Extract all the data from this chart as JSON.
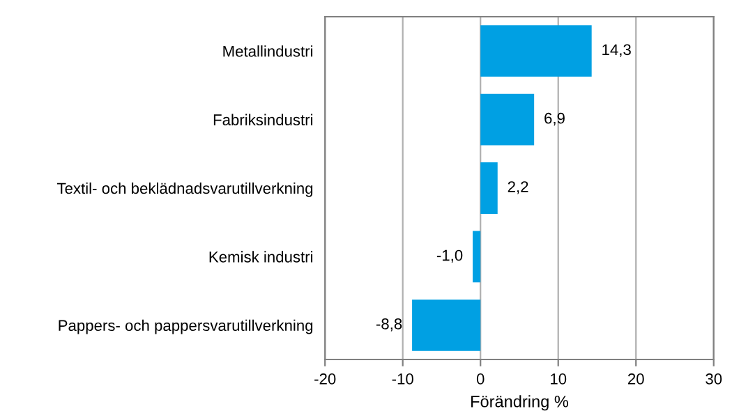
{
  "chart_data": {
    "type": "bar",
    "orientation": "horizontal",
    "categories": [
      "Metallindustri",
      "Fabriksindustri",
      "Textil- och beklädnadsvarutillverkning",
      "Kemisk industri",
      "Pappers- och pappersvarutillverkning"
    ],
    "values": [
      14.3,
      6.9,
      2.2,
      -1.0,
      -8.8
    ],
    "value_labels": [
      "14,3",
      "6,9",
      "2,2",
      "-1,0",
      "-8,8"
    ],
    "color": "#00a0e3",
    "xlabel": "Förändring %",
    "xlim": [
      -20,
      30
    ],
    "xticks": [
      -20,
      -10,
      0,
      10,
      20,
      30
    ],
    "grid": "x"
  }
}
